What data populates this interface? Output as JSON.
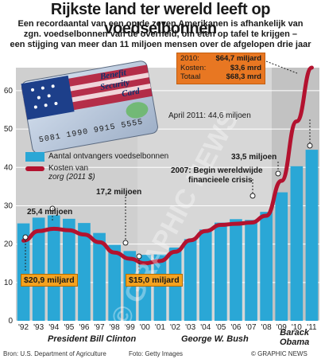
{
  "header": {
    "title": "Rijkste land ter wereld leeft op voedselbonnen",
    "subtitle_lines": [
      "Een recordaantal van een op de zeven Amerikanen is afhankelijk van",
      "zgn. voedselbonnen van de overheid, om eten op tafel te krijgen –",
      "een stijging van meer dan 11 miljoen mensen over de afgelopen drie jaar"
    ]
  },
  "card": {
    "text1": "Benefit",
    "text2": "Security",
    "text3": "Card",
    "number": "5081 1990 9915 5555"
  },
  "stat_box": {
    "year": "2010:",
    "year_value": "$64,7 miljard",
    "costs_label": "Kosten:",
    "costs_value": "$3,6 mrd",
    "total_label": "Totaal",
    "total_value": "$68,3 mrd"
  },
  "legend": {
    "bars_label": "Aantal ontvangers voedselbonnen",
    "line_label_1": "Kosten van",
    "line_label_2": "zorg (2011 $)"
  },
  "callouts": {
    "april_2011": "April 2011: 44,6 miljoen",
    "peak_2007": "33,5 miljoen",
    "crisis_1": "2007: Begin wereldwijde",
    "crisis_2": "financieele crisis",
    "y1994": "25,4 miljoen",
    "y2000": "17,2 miljoen",
    "cost_1992": "$20,9 miljard",
    "cost_2000": "$15,0 miljard"
  },
  "presidents": {
    "clinton": "President Bill Clinton",
    "bush": "George W. Bush",
    "obama_1": "Barack",
    "obama_2": "Obama"
  },
  "footer": {
    "source": "Bron: U.S. Department of Agriculture",
    "photo": "Foto: Getty Images",
    "credit": "© GRAPHIC NEWS"
  },
  "watermark": "© GRAPHIC NEWS",
  "chart_data": {
    "type": "bar",
    "categories": [
      "'92",
      "'93",
      "'94",
      "'95",
      "'96",
      "'97",
      "'98",
      "'99",
      "'00",
      "'01",
      "'02",
      "'03",
      "'04",
      "'05",
      "'06",
      "'07",
      "'08",
      "'09",
      "'10",
      "'11"
    ],
    "series": [
      {
        "name": "Aantal ontvangers voedselbonnen",
        "type": "bar",
        "values": [
          25.4,
          26.9,
          27.5,
          26.6,
          25.5,
          22.9,
          19.8,
          18.2,
          17.2,
          17.3,
          19.1,
          21.3,
          23.8,
          25.6,
          26.5,
          26.3,
          28.4,
          33.5,
          40.3,
          44.6
        ]
      },
      {
        "name": "Kosten van zorg (2011 $)",
        "type": "line",
        "values": [
          20.9,
          23.4,
          24.0,
          23.6,
          22.5,
          20.5,
          17.8,
          16.2,
          15.0,
          15.6,
          18.0,
          21.0,
          23.4,
          25.0,
          25.3,
          25.6,
          27.4,
          36.5,
          52.0,
          66.0
        ]
      }
    ],
    "yticks": [
      0,
      10,
      20,
      30,
      40,
      50,
      60
    ],
    "ylim": [
      0,
      66
    ],
    "grid": true
  }
}
